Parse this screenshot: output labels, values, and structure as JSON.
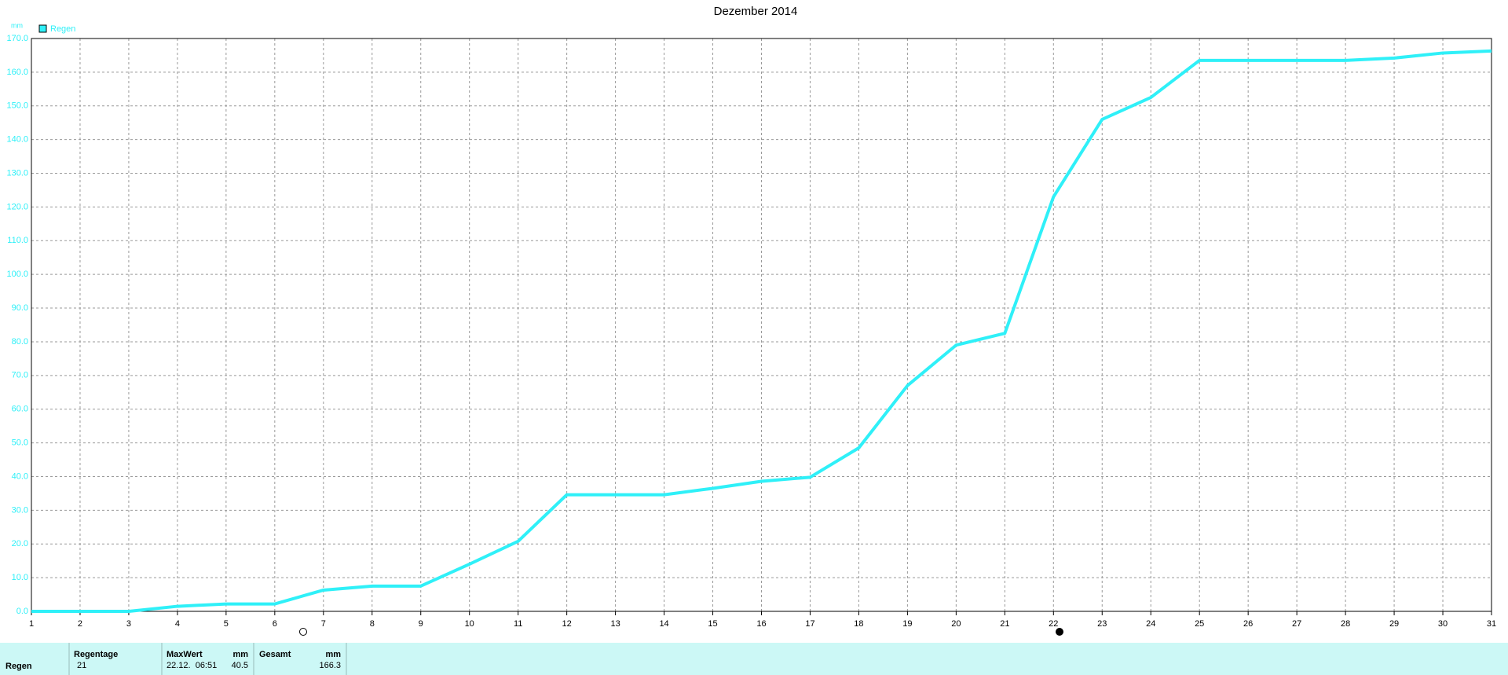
{
  "chart_data": {
    "type": "line",
    "title": "Dezember 2014",
    "y_label": "mm",
    "x": [
      1,
      2,
      3,
      4,
      5,
      6,
      7,
      8,
      9,
      10,
      11,
      12,
      13,
      14,
      15,
      16,
      17,
      18,
      19,
      20,
      21,
      22,
      23,
      24,
      25,
      26,
      27,
      28,
      29,
      30,
      31
    ],
    "series": [
      {
        "name": "Regen",
        "color": "#2ff0f8",
        "values": [
          0,
          0,
          0,
          1.5,
          2.2,
          2.2,
          6.3,
          7.5,
          7.5,
          14,
          20.8,
          34.6,
          34.6,
          34.6,
          36.5,
          38.6,
          39.8,
          48.5,
          67,
          79,
          82.5,
          123,
          146,
          152.5,
          163.5,
          163.5,
          163.5,
          163.5,
          164.2,
          165.7,
          166.3
        ]
      }
    ],
    "xlim": [
      1,
      31
    ],
    "xticks": [
      1,
      2,
      3,
      4,
      5,
      6,
      7,
      8,
      9,
      10,
      11,
      12,
      13,
      14,
      15,
      16,
      17,
      18,
      19,
      20,
      21,
      22,
      23,
      24,
      25,
      26,
      27,
      28,
      29,
      30,
      31
    ],
    "ylim": [
      0,
      170
    ],
    "yticks": [
      {
        "value": 0,
        "label": "0.0"
      },
      {
        "value": 10,
        "label": "10.0"
      },
      {
        "value": 20,
        "label": "20.0"
      },
      {
        "value": 30,
        "label": "30.0"
      },
      {
        "value": 40,
        "label": "40.0"
      },
      {
        "value": 50,
        "label": "50.0"
      },
      {
        "value": 60,
        "label": "60.0"
      },
      {
        "value": 70,
        "label": "70.0"
      },
      {
        "value": 80,
        "label": "80.0"
      },
      {
        "value": 90,
        "label": "90.0"
      },
      {
        "value": 100,
        "label": "100.0"
      },
      {
        "value": 110,
        "label": "110.0"
      },
      {
        "value": 120,
        "label": "120.0"
      },
      {
        "value": 130,
        "label": "130.0"
      },
      {
        "value": 140,
        "label": "140.0"
      },
      {
        "value": 150,
        "label": "150.0"
      },
      {
        "value": 160,
        "label": "160.0"
      },
      {
        "value": 170,
        "label": "170.0"
      }
    ],
    "grid": true,
    "legend": "top-left"
  },
  "summary_table": {
    "headers": [
      "Regentage",
      "MaxWert",
      "mm",
      "Gesamt",
      "mm"
    ],
    "row": [
      "Regen",
      "21",
      "22.12.  06:51",
      "40.5",
      "166.3"
    ]
  }
}
